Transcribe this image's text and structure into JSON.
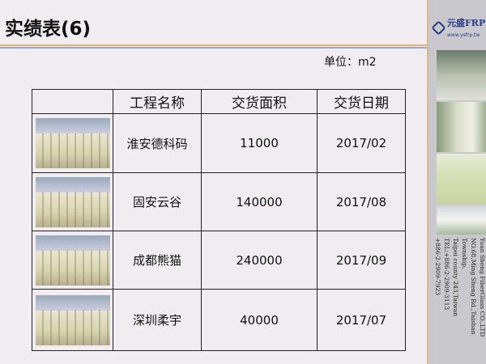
{
  "title": "实绩表(6)",
  "unit": "单位：m2",
  "table": {
    "headers": [
      "",
      "工程名称",
      "交货面积",
      "交货日期"
    ],
    "rows": [
      {
        "name": "淮安德科码",
        "area": "11000",
        "date": "2017/02"
      },
      {
        "name": "固安云谷",
        "area": "140000",
        "date": "2017/08"
      },
      {
        "name": "成都熊猫",
        "area": "240000",
        "date": "2017/09"
      },
      {
        "name": "深圳柔宇",
        "area": "40000",
        "date": "2017/07"
      }
    ]
  },
  "sidebar": {
    "logo_mark": "YS",
    "logo_name": "元盛FRP",
    "logo_url": "www.ysfrp.tw",
    "address": [
      "Yuan Sheng FiberGlass CO.,LTD",
      "NO.68,Ming Sheng Rd.,Taishan Township,",
      "Taipei county 243,Taiwan",
      "TEL:+886-2-2909-3113",
      "+886-2-2909-7923"
    ]
  },
  "colors": {
    "accent_orange": "#e8b070",
    "accent_blue": "#8fa8d8",
    "brand": "#2a3a8a"
  }
}
